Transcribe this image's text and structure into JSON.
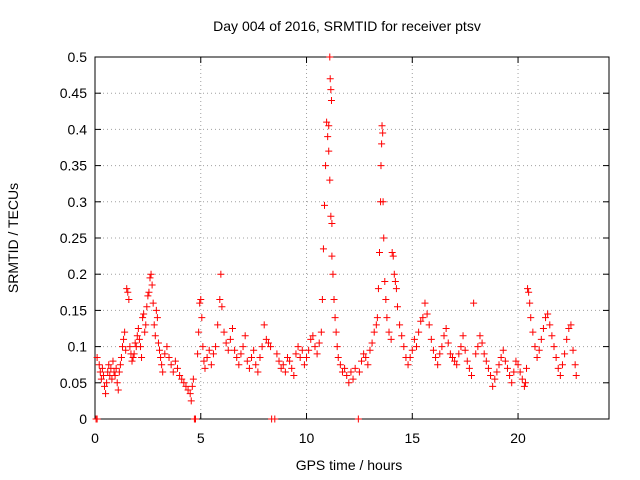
{
  "chart_data": {
    "type": "scatter",
    "title": "Day 004 of 2016, SRMTID for receiver ptsv",
    "xlabel": "GPS time / hours",
    "ylabel": "SRMTID / TECUs",
    "xlim": [
      0,
      24.3
    ],
    "ylim": [
      0,
      0.5
    ],
    "x_ticks": [
      "0",
      "5",
      "10",
      "15",
      "20"
    ],
    "y_ticks": [
      "0",
      "0.05",
      "0.1",
      "0.15",
      "0.2",
      "0.25",
      "0.3",
      "0.35",
      "0.4",
      "0.45",
      "0.5"
    ],
    "grid": true,
    "marker": "+",
    "series": [
      {
        "color": "#ff0000",
        "points": [
          [
            0.05,
            0.0
          ],
          [
            0.1,
            0.0
          ],
          [
            0.1,
            0.085
          ],
          [
            0.2,
            0.075
          ],
          [
            0.25,
            0.065
          ],
          [
            0.3,
            0.055
          ],
          [
            0.35,
            0.07
          ],
          [
            0.4,
            0.06
          ],
          [
            0.45,
            0.045
          ],
          [
            0.5,
            0.035
          ],
          [
            0.55,
            0.05
          ],
          [
            0.6,
            0.065
          ],
          [
            0.65,
            0.075
          ],
          [
            0.7,
            0.06
          ],
          [
            0.75,
            0.07
          ],
          [
            0.8,
            0.055
          ],
          [
            0.85,
            0.08
          ],
          [
            0.9,
            0.065
          ],
          [
            0.95,
            0.06
          ],
          [
            1.0,
            0.07
          ],
          [
            1.05,
            0.05
          ],
          [
            1.1,
            0.04
          ],
          [
            1.15,
            0.065
          ],
          [
            1.2,
            0.075
          ],
          [
            1.25,
            0.085
          ],
          [
            1.3,
            0.1
          ],
          [
            1.35,
            0.11
          ],
          [
            1.4,
            0.12
          ],
          [
            1.45,
            0.095
          ],
          [
            1.5,
            0.18
          ],
          [
            1.55,
            0.175
          ],
          [
            1.6,
            0.165
          ],
          [
            1.65,
            0.1
          ],
          [
            1.7,
            0.09
          ],
          [
            1.75,
            0.08
          ],
          [
            1.8,
            0.085
          ],
          [
            1.85,
            0.09
          ],
          [
            1.9,
            0.105
          ],
          [
            1.95,
            0.1
          ],
          [
            2.0,
            0.115
          ],
          [
            2.05,
            0.125
          ],
          [
            2.1,
            0.11
          ],
          [
            2.15,
            0.1
          ],
          [
            2.2,
            0.085
          ],
          [
            2.25,
            0.14
          ],
          [
            2.3,
            0.145
          ],
          [
            2.35,
            0.12
          ],
          [
            2.4,
            0.13
          ],
          [
            2.45,
            0.155
          ],
          [
            2.5,
            0.17
          ],
          [
            2.55,
            0.175
          ],
          [
            2.6,
            0.195
          ],
          [
            2.65,
            0.2
          ],
          [
            2.7,
            0.185
          ],
          [
            2.75,
            0.16
          ],
          [
            2.8,
            0.13
          ],
          [
            2.85,
            0.115
          ],
          [
            2.9,
            0.15
          ],
          [
            2.95,
            0.14
          ],
          [
            3.0,
            0.105
          ],
          [
            3.05,
            0.095
          ],
          [
            3.1,
            0.085
          ],
          [
            3.15,
            0.075
          ],
          [
            3.2,
            0.065
          ],
          [
            3.3,
            0.09
          ],
          [
            3.4,
            0.1
          ],
          [
            3.5,
            0.085
          ],
          [
            3.6,
            0.075
          ],
          [
            3.7,
            0.065
          ],
          [
            3.8,
            0.08
          ],
          [
            3.9,
            0.07
          ],
          [
            4.0,
            0.06
          ],
          [
            4.1,
            0.055
          ],
          [
            4.2,
            0.05
          ],
          [
            4.3,
            0.045
          ],
          [
            4.4,
            0.04
          ],
          [
            4.5,
            0.035
          ],
          [
            4.55,
            0.025
          ],
          [
            4.6,
            0.045
          ],
          [
            4.65,
            0.055
          ],
          [
            4.7,
            0.0
          ],
          [
            4.75,
            0.0
          ],
          [
            4.85,
            0.09
          ],
          [
            4.9,
            0.12
          ],
          [
            4.95,
            0.16
          ],
          [
            5.0,
            0.165
          ],
          [
            5.05,
            0.14
          ],
          [
            5.1,
            0.1
          ],
          [
            5.15,
            0.08
          ],
          [
            5.2,
            0.07
          ],
          [
            5.3,
            0.085
          ],
          [
            5.4,
            0.095
          ],
          [
            5.5,
            0.075
          ],
          [
            5.6,
            0.09
          ],
          [
            5.7,
            0.1
          ],
          [
            5.8,
            0.13
          ],
          [
            5.9,
            0.165
          ],
          [
            5.95,
            0.2
          ],
          [
            6.0,
            0.155
          ],
          [
            6.1,
            0.12
          ],
          [
            6.2,
            0.105
          ],
          [
            6.3,
            0.095
          ],
          [
            6.4,
            0.11
          ],
          [
            6.5,
            0.125
          ],
          [
            6.6,
            0.095
          ],
          [
            6.7,
            0.085
          ],
          [
            6.8,
            0.075
          ],
          [
            6.9,
            0.09
          ],
          [
            7.0,
            0.1
          ],
          [
            7.1,
            0.115
          ],
          [
            7.2,
            0.08
          ],
          [
            7.3,
            0.07
          ],
          [
            7.4,
            0.085
          ],
          [
            7.5,
            0.095
          ],
          [
            7.6,
            0.075
          ],
          [
            7.7,
            0.065
          ],
          [
            7.8,
            0.085
          ],
          [
            7.9,
            0.1
          ],
          [
            8.0,
            0.13
          ],
          [
            8.1,
            0.11
          ],
          [
            8.2,
            0.105
          ],
          [
            8.3,
            0.1
          ],
          [
            8.35,
            0.0
          ],
          [
            8.5,
            0.0
          ],
          [
            8.6,
            0.09
          ],
          [
            8.7,
            0.08
          ],
          [
            8.8,
            0.07
          ],
          [
            8.9,
            0.075
          ],
          [
            9.0,
            0.065
          ],
          [
            9.1,
            0.085
          ],
          [
            9.2,
            0.08
          ],
          [
            9.3,
            0.07
          ],
          [
            9.4,
            0.06
          ],
          [
            9.5,
            0.09
          ],
          [
            9.6,
            0.1
          ],
          [
            9.7,
            0.085
          ],
          [
            9.8,
            0.095
          ],
          [
            9.9,
            0.075
          ],
          [
            10.0,
            0.085
          ],
          [
            10.1,
            0.095
          ],
          [
            10.2,
            0.11
          ],
          [
            10.3,
            0.115
          ],
          [
            10.4,
            0.1
          ],
          [
            10.5,
            0.09
          ],
          [
            10.6,
            0.105
          ],
          [
            10.7,
            0.12
          ],
          [
            10.75,
            0.165
          ],
          [
            10.8,
            0.235
          ],
          [
            10.85,
            0.295
          ],
          [
            10.9,
            0.35
          ],
          [
            10.95,
            0.41
          ],
          [
            11.0,
            0.39
          ],
          [
            11.05,
            0.37
          ],
          [
            11.1,
            0.33
          ],
          [
            11.15,
            0.28
          ],
          [
            11.2,
            0.27
          ],
          [
            11.1,
            0.5
          ],
          [
            11.12,
            0.47
          ],
          [
            11.15,
            0.455
          ],
          [
            11.18,
            0.44
          ],
          [
            11.05,
            0.405
          ],
          [
            11.2,
            0.225
          ],
          [
            11.25,
            0.2
          ],
          [
            11.3,
            0.165
          ],
          [
            11.35,
            0.14
          ],
          [
            11.4,
            0.12
          ],
          [
            11.45,
            0.1
          ],
          [
            11.5,
            0.085
          ],
          [
            11.6,
            0.075
          ],
          [
            11.7,
            0.065
          ],
          [
            11.8,
            0.07
          ],
          [
            11.9,
            0.06
          ],
          [
            12.0,
            0.05
          ],
          [
            12.1,
            0.065
          ],
          [
            12.2,
            0.055
          ],
          [
            12.3,
            0.07
          ],
          [
            12.45,
            0.0
          ],
          [
            12.5,
            0.065
          ],
          [
            12.6,
            0.08
          ],
          [
            12.7,
            0.09
          ],
          [
            12.8,
            0.085
          ],
          [
            12.9,
            0.075
          ],
          [
            13.0,
            0.095
          ],
          [
            13.1,
            0.105
          ],
          [
            13.2,
            0.12
          ],
          [
            13.3,
            0.13
          ],
          [
            13.35,
            0.14
          ],
          [
            13.4,
            0.18
          ],
          [
            13.45,
            0.23
          ],
          [
            13.5,
            0.3
          ],
          [
            13.52,
            0.35
          ],
          [
            13.55,
            0.38
          ],
          [
            13.57,
            0.405
          ],
          [
            13.6,
            0.395
          ],
          [
            13.62,
            0.3
          ],
          [
            13.65,
            0.25
          ],
          [
            13.7,
            0.19
          ],
          [
            13.75,
            0.165
          ],
          [
            13.8,
            0.14
          ],
          [
            13.9,
            0.12
          ],
          [
            14.0,
            0.11
          ],
          [
            14.05,
            0.23
          ],
          [
            14.1,
            0.225
          ],
          [
            14.15,
            0.2
          ],
          [
            14.2,
            0.19
          ],
          [
            14.25,
            0.18
          ],
          [
            14.3,
            0.155
          ],
          [
            14.4,
            0.13
          ],
          [
            14.5,
            0.115
          ],
          [
            14.6,
            0.1
          ],
          [
            14.7,
            0.085
          ],
          [
            14.8,
            0.075
          ],
          [
            14.9,
            0.085
          ],
          [
            15.0,
            0.095
          ],
          [
            15.1,
            0.11
          ],
          [
            15.2,
            0.1
          ],
          [
            15.3,
            0.12
          ],
          [
            15.4,
            0.135
          ],
          [
            15.5,
            0.14
          ],
          [
            15.6,
            0.16
          ],
          [
            15.7,
            0.145
          ],
          [
            15.8,
            0.13
          ],
          [
            15.9,
            0.11
          ],
          [
            16.0,
            0.095
          ],
          [
            16.1,
            0.085
          ],
          [
            16.2,
            0.075
          ],
          [
            16.3,
            0.09
          ],
          [
            16.4,
            0.1
          ],
          [
            16.5,
            0.115
          ],
          [
            16.6,
            0.125
          ],
          [
            16.7,
            0.105
          ],
          [
            16.8,
            0.09
          ],
          [
            16.9,
            0.085
          ],
          [
            17.0,
            0.08
          ],
          [
            17.1,
            0.075
          ],
          [
            17.2,
            0.09
          ],
          [
            17.3,
            0.1
          ],
          [
            17.4,
            0.115
          ],
          [
            17.5,
            0.095
          ],
          [
            17.6,
            0.08
          ],
          [
            17.7,
            0.07
          ],
          [
            17.8,
            0.06
          ],
          [
            17.9,
            0.16
          ],
          [
            18.0,
            0.09
          ],
          [
            18.1,
            0.1
          ],
          [
            18.2,
            0.115
          ],
          [
            18.3,
            0.105
          ],
          [
            18.4,
            0.09
          ],
          [
            18.5,
            0.08
          ],
          [
            18.6,
            0.07
          ],
          [
            18.7,
            0.06
          ],
          [
            18.8,
            0.045
          ],
          [
            18.9,
            0.055
          ],
          [
            19.0,
            0.065
          ],
          [
            19.1,
            0.075
          ],
          [
            19.2,
            0.085
          ],
          [
            19.3,
            0.095
          ],
          [
            19.4,
            0.08
          ],
          [
            19.5,
            0.07
          ],
          [
            19.6,
            0.06
          ],
          [
            19.7,
            0.05
          ],
          [
            19.8,
            0.065
          ],
          [
            19.9,
            0.08
          ],
          [
            20.0,
            0.075
          ],
          [
            20.1,
            0.065
          ],
          [
            20.2,
            0.055
          ],
          [
            20.3,
            0.045
          ],
          [
            20.35,
            0.05
          ],
          [
            20.4,
            0.07
          ],
          [
            20.45,
            0.18
          ],
          [
            20.5,
            0.175
          ],
          [
            20.55,
            0.16
          ],
          [
            20.6,
            0.14
          ],
          [
            20.7,
            0.12
          ],
          [
            20.8,
            0.1
          ],
          [
            20.9,
            0.085
          ],
          [
            21.0,
            0.095
          ],
          [
            21.1,
            0.11
          ],
          [
            21.2,
            0.125
          ],
          [
            21.3,
            0.14
          ],
          [
            21.4,
            0.145
          ],
          [
            21.5,
            0.13
          ],
          [
            21.6,
            0.115
          ],
          [
            21.7,
            0.1
          ],
          [
            21.8,
            0.085
          ],
          [
            21.9,
            0.07
          ],
          [
            22.0,
            0.06
          ],
          [
            22.1,
            0.075
          ],
          [
            22.2,
            0.09
          ],
          [
            22.3,
            0.11
          ],
          [
            22.4,
            0.125
          ],
          [
            22.5,
            0.13
          ],
          [
            22.6,
            0.095
          ],
          [
            22.7,
            0.075
          ],
          [
            22.75,
            0.06
          ]
        ]
      }
    ]
  }
}
